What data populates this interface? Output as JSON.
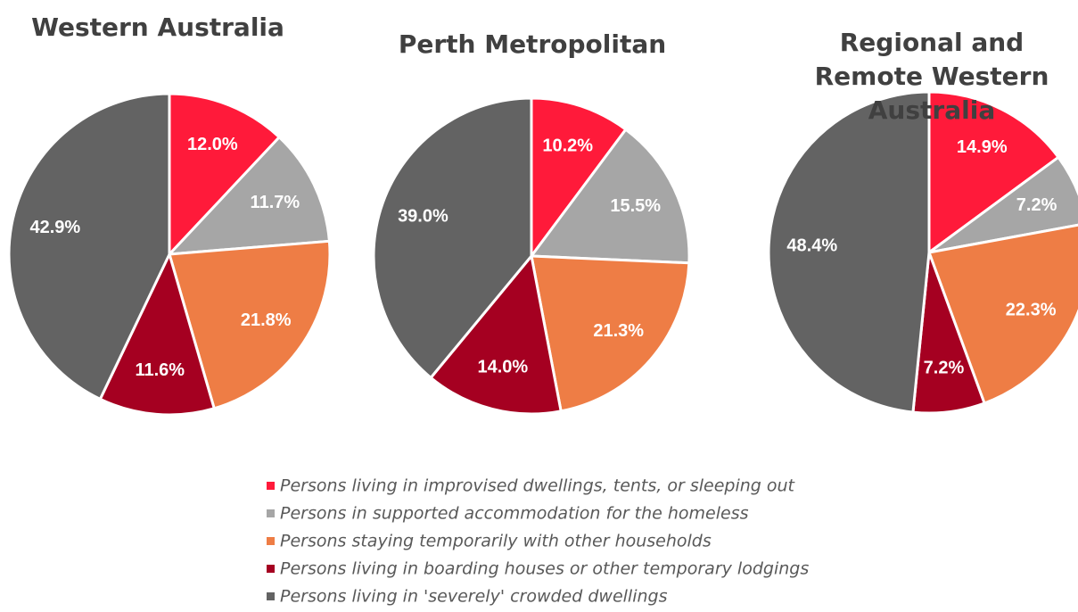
{
  "chart_data": [
    {
      "type": "pie",
      "title": "Western Australia",
      "values": [
        12.0,
        11.7,
        21.8,
        11.6,
        42.9
      ],
      "value_labels": [
        "12.0%",
        "11.7%",
        "21.8%",
        "11.6%",
        "42.9%"
      ]
    },
    {
      "type": "pie",
      "title": "Perth Metropolitan",
      "values": [
        10.2,
        15.5,
        21.3,
        14.0,
        39.0
      ],
      "value_labels": [
        "10.2%",
        "15.5%",
        "21.3%",
        "14.0%",
        "39.0%"
      ]
    },
    {
      "type": "pie",
      "title": "Regional and Remote Western Australia",
      "values": [
        14.9,
        7.2,
        22.3,
        7.2,
        48.4
      ],
      "value_labels": [
        "14.9%",
        "7.2%",
        "22.3%",
        "7.2%",
        "48.4%"
      ]
    }
  ],
  "legend": {
    "labels": [
      "Persons living in improvised dwellings, tents, or sleeping out",
      "Persons in supported accommodation for the homeless",
      "Persons staying temporarily with other households",
      "Persons living in boarding houses or other temporary lodgings",
      "Persons living in 'severely' crowded dwellings"
    ],
    "colors": [
      "#ff1a3a",
      "#a6a6a6",
      "#ee7d45",
      "#a50021",
      "#636363"
    ]
  }
}
